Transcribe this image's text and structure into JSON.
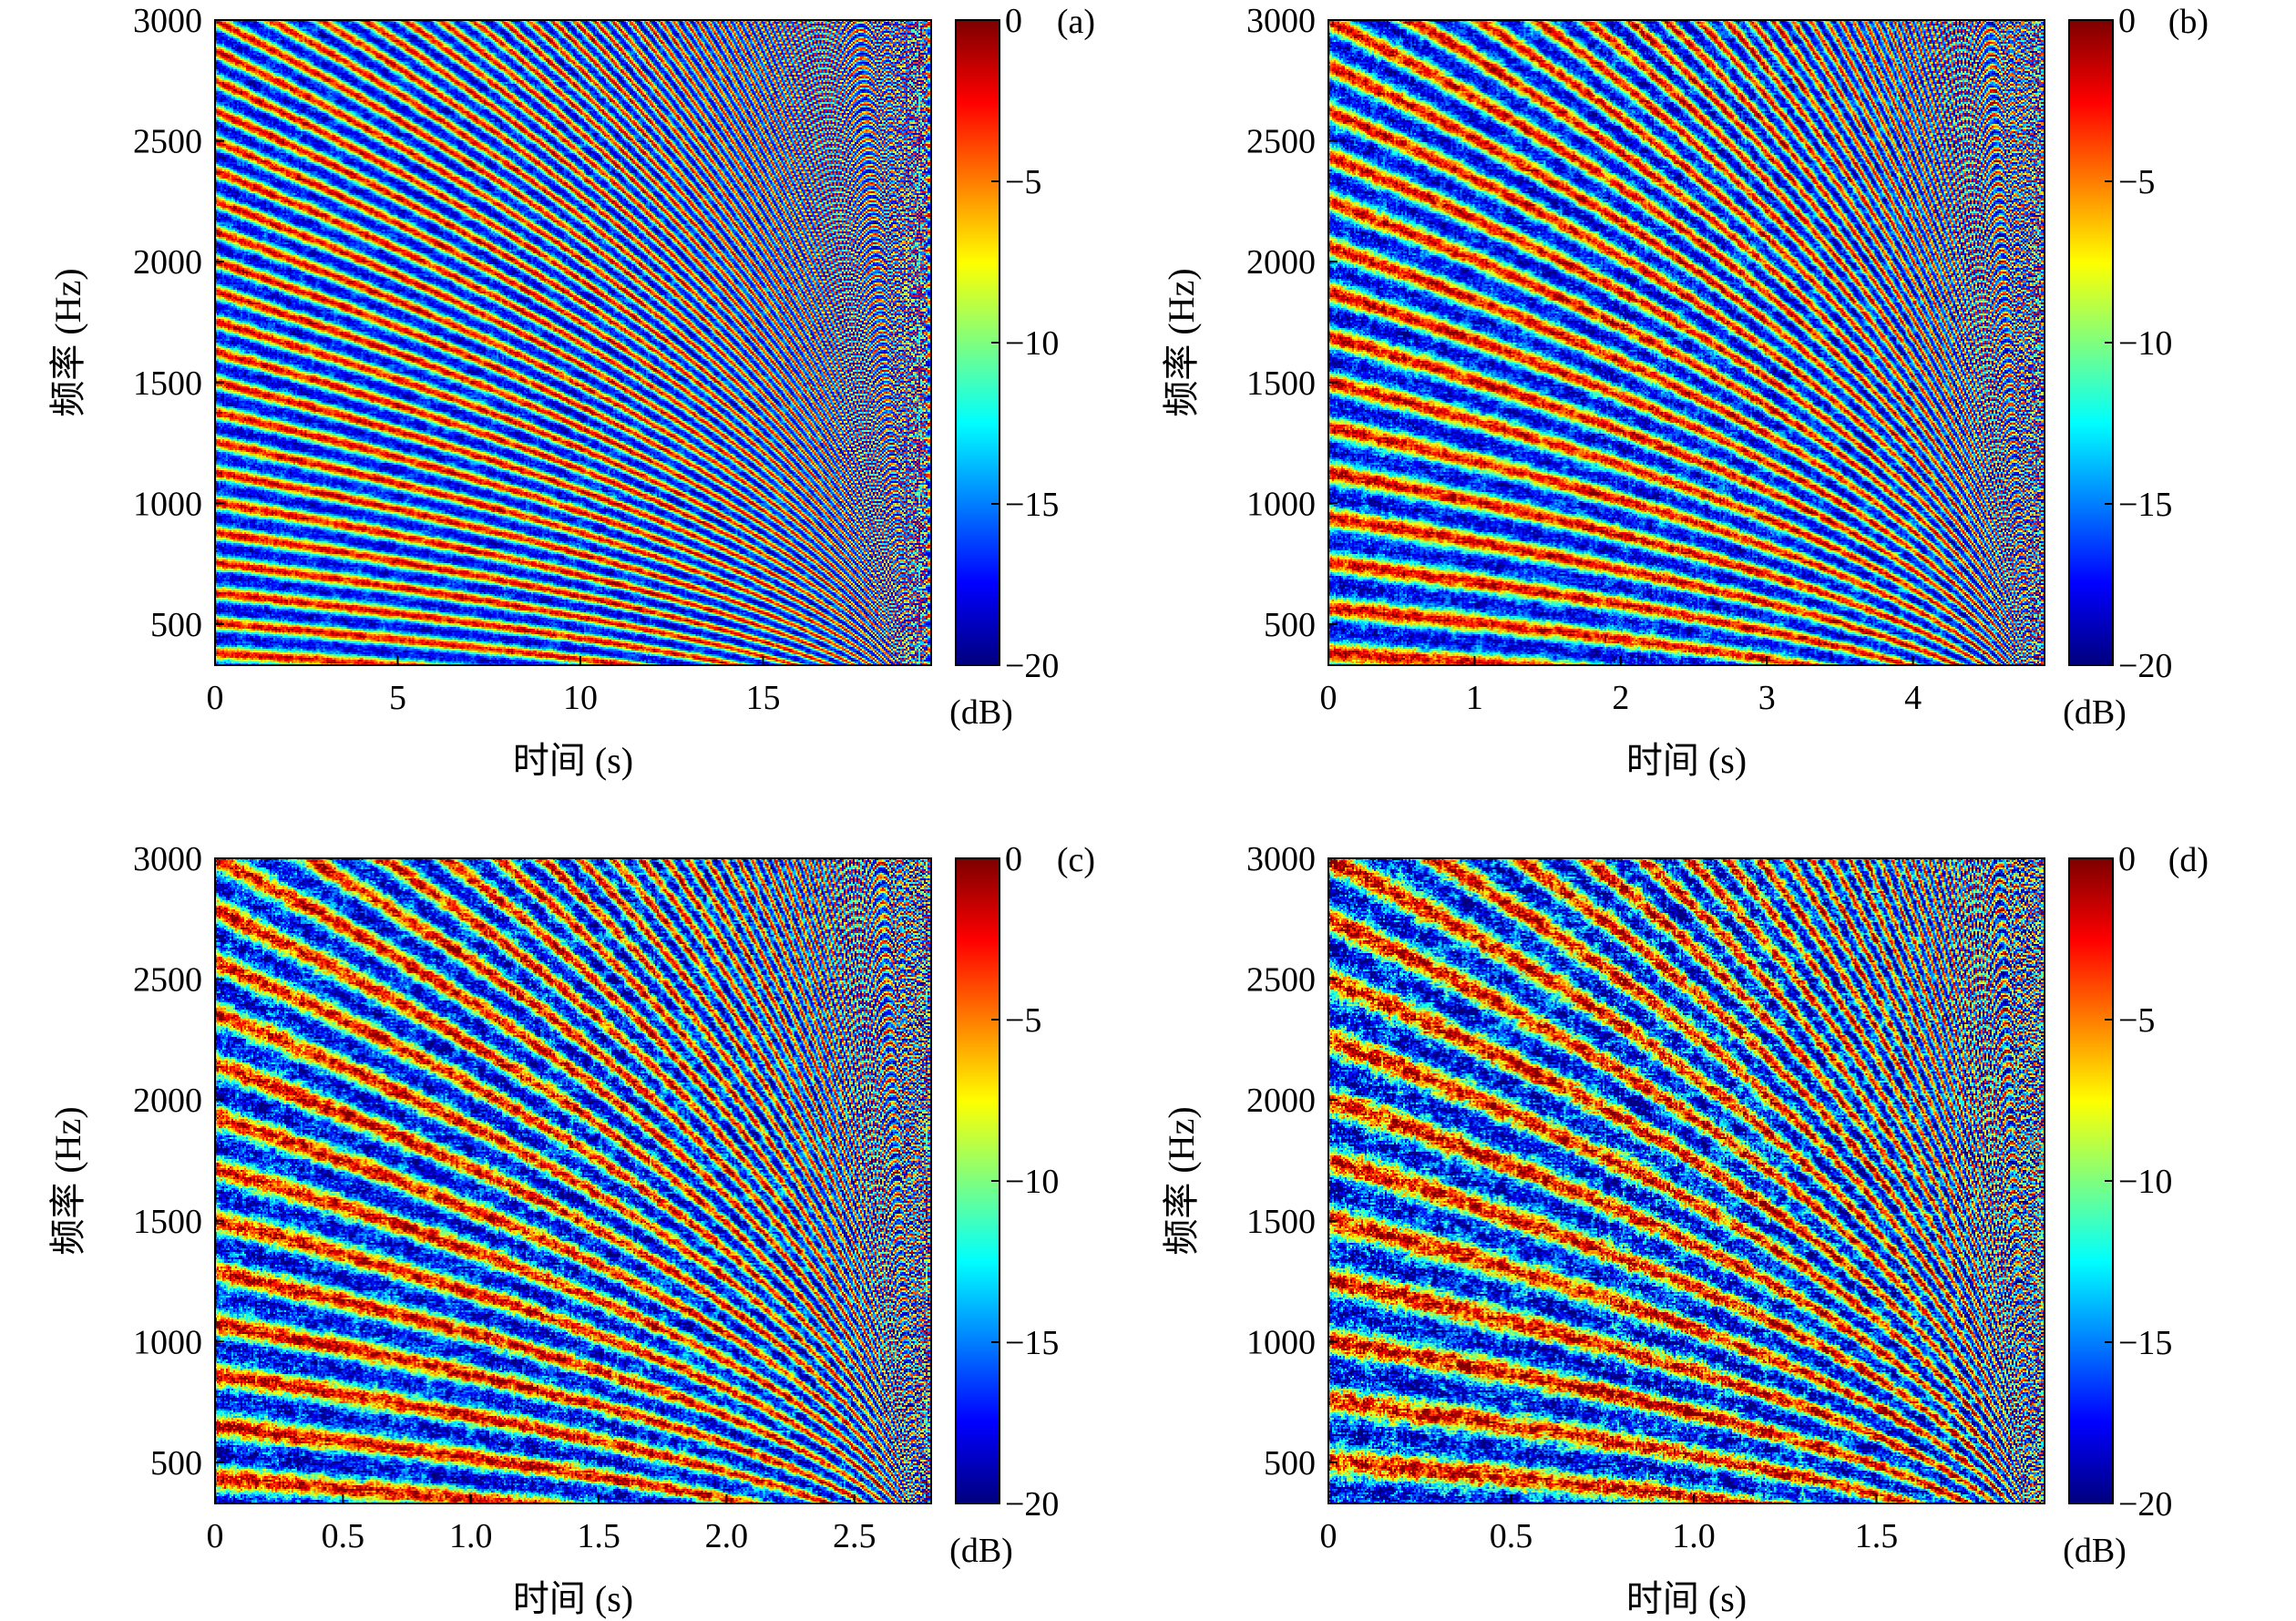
{
  "colormap": [
    "#00007f",
    "#0000ff",
    "#007fff",
    "#00ffff",
    "#7fff7f",
    "#ffff00",
    "#ff7f00",
    "#ff0000",
    "#7f0000"
  ],
  "chart_data": [
    {
      "type": "heatmap",
      "panel_label": "(a)",
      "xlabel": "时间 (s)",
      "ylabel": "频率 (Hz)",
      "xlim": [
        0,
        19.6
      ],
      "ylim": [
        330,
        3000
      ],
      "xticks": [
        0,
        5,
        10,
        15
      ],
      "xtick_labels": [
        "0",
        "5",
        "10",
        "15"
      ],
      "yticks": [
        500,
        1000,
        1500,
        2000,
        2500,
        3000
      ],
      "ytick_labels": [
        "500",
        "1000",
        "1500",
        "2000",
        "2500",
        "3000"
      ],
      "colorbar": {
        "range": [
          -20,
          0
        ],
        "ticks": [
          0,
          -5,
          -10,
          -15,
          -20
        ],
        "tick_labels": [
          "0",
          "−5",
          "−10",
          "−15",
          "−20"
        ],
        "unit": "(dB)"
      },
      "pattern": {
        "t_end": 19.6,
        "fringe_count": 24,
        "noise": 0.45
      }
    },
    {
      "type": "heatmap",
      "panel_label": "(b)",
      "xlabel": "时间 (s)",
      "ylabel": "频率 (Hz)",
      "xlim": [
        0,
        4.9
      ],
      "ylim": [
        330,
        3000
      ],
      "xticks": [
        0,
        1,
        2,
        3,
        4
      ],
      "xtick_labels": [
        "0",
        "1",
        "2",
        "3",
        "4"
      ],
      "yticks": [
        500,
        1000,
        1500,
        2000,
        2500,
        3000
      ],
      "ytick_labels": [
        "500",
        "1000",
        "1500",
        "2000",
        "2500",
        "3000"
      ],
      "colorbar": {
        "range": [
          -20,
          0
        ],
        "ticks": [
          0,
          -5,
          -10,
          -15,
          -20
        ],
        "tick_labels": [
          "0",
          "−5",
          "−10",
          "−15",
          "−20"
        ],
        "unit": "(dB)"
      },
      "pattern": {
        "t_end": 4.9,
        "fringe_count": 16,
        "noise": 0.6
      }
    },
    {
      "type": "heatmap",
      "panel_label": "(c)",
      "xlabel": "时间 (s)",
      "ylabel": "频率 (Hz)",
      "xlim": [
        0,
        2.8
      ],
      "ylim": [
        330,
        3000
      ],
      "xticks": [
        0,
        0.5,
        1.0,
        1.5,
        2.0,
        2.5
      ],
      "xtick_labels": [
        "0",
        "0.5",
        "1.0",
        "1.5",
        "2.0",
        "2.5"
      ],
      "yticks": [
        500,
        1000,
        1500,
        2000,
        2500,
        3000
      ],
      "ytick_labels": [
        "500",
        "1000",
        "1500",
        "2000",
        "2500",
        "3000"
      ],
      "colorbar": {
        "range": [
          -20,
          0
        ],
        "ticks": [
          0,
          -5,
          -10,
          -15,
          -20
        ],
        "tick_labels": [
          "0",
          "−5",
          "−10",
          "−15",
          "−20"
        ],
        "unit": "(dB)"
      },
      "pattern": {
        "t_end": 2.8,
        "fringe_count": 14,
        "noise": 0.8
      }
    },
    {
      "type": "heatmap",
      "panel_label": "(d)",
      "xlabel": "时间 (s)",
      "ylabel": "频率 (Hz)",
      "xlim": [
        0,
        1.96
      ],
      "ylim": [
        330,
        3000
      ],
      "xticks": [
        0,
        0.5,
        1.0,
        1.5
      ],
      "xtick_labels": [
        "0",
        "0.5",
        "1.0",
        "1.5"
      ],
      "yticks": [
        500,
        1000,
        1500,
        2000,
        2500,
        3000
      ],
      "ytick_labels": [
        "500",
        "1000",
        "1500",
        "2000",
        "2500",
        "3000"
      ],
      "colorbar": {
        "range": [
          -20,
          0
        ],
        "ticks": [
          0,
          -5,
          -10,
          -15,
          -20
        ],
        "tick_labels": [
          "0",
          "−5",
          "−10",
          "−15",
          "−20"
        ],
        "unit": "(dB)"
      },
      "pattern": {
        "t_end": 1.96,
        "fringe_count": 12,
        "noise": 1.0
      }
    }
  ]
}
